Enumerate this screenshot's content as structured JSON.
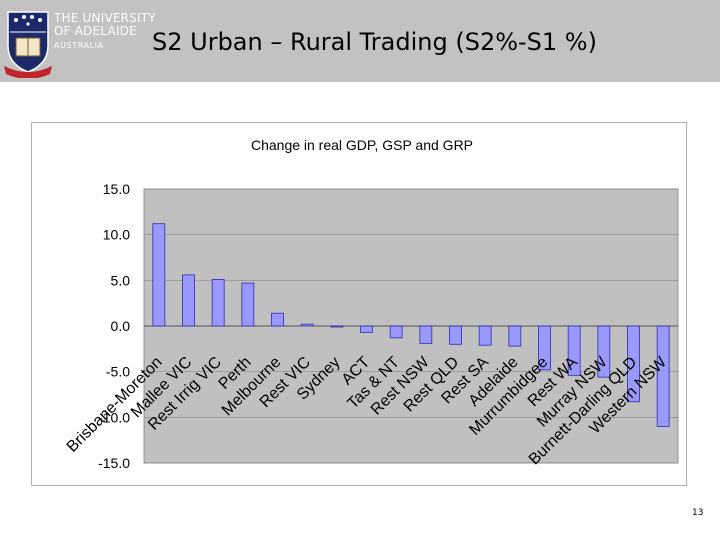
{
  "header": {
    "university_line1": "THE UNIVERSITY",
    "university_line2": "OF ADELAIDE",
    "university_line3": "AUSTRALIA",
    "crest_ribbon": "SUB CRUCE LUMEN",
    "background_color": "#c2c2c2"
  },
  "slide": {
    "title": "S2 Urban – Rural Trading (S2%-S1 %)",
    "page_number": "13"
  },
  "chart_data": {
    "type": "bar",
    "title": "Change in real GDP, GSP and GRP",
    "xlabel": "",
    "ylabel": "",
    "ylim": [
      -15,
      15
    ],
    "yticks": [
      "15.0",
      "10.0",
      "5.0",
      "0.0",
      "-5.0",
      "-10.0",
      "-15.0"
    ],
    "grid": true,
    "legend": "none",
    "bar_color": "#9999ff",
    "plot_background": "#c0c0c0",
    "categories": [
      "Brisbane-Moreton",
      "Mallee VIC",
      "Rest Irrig VIC",
      "Perth",
      "Melbourne",
      "Rest VIC",
      "Sydney",
      "ACT",
      "Tas & NT",
      "Rest NSW",
      "Rest QLD",
      "Rest SA",
      "Adelaide",
      "Murrumbidgee",
      "Rest WA",
      "Murray NSW",
      "Burnett-Darling QLD",
      "Western NSW"
    ],
    "values": [
      11.2,
      5.6,
      5.1,
      4.7,
      1.4,
      0.2,
      -0.1,
      -0.7,
      -1.3,
      -1.9,
      -2.0,
      -2.1,
      -2.2,
      -4.8,
      -5.4,
      -5.6,
      -8.3,
      -11.0
    ]
  }
}
